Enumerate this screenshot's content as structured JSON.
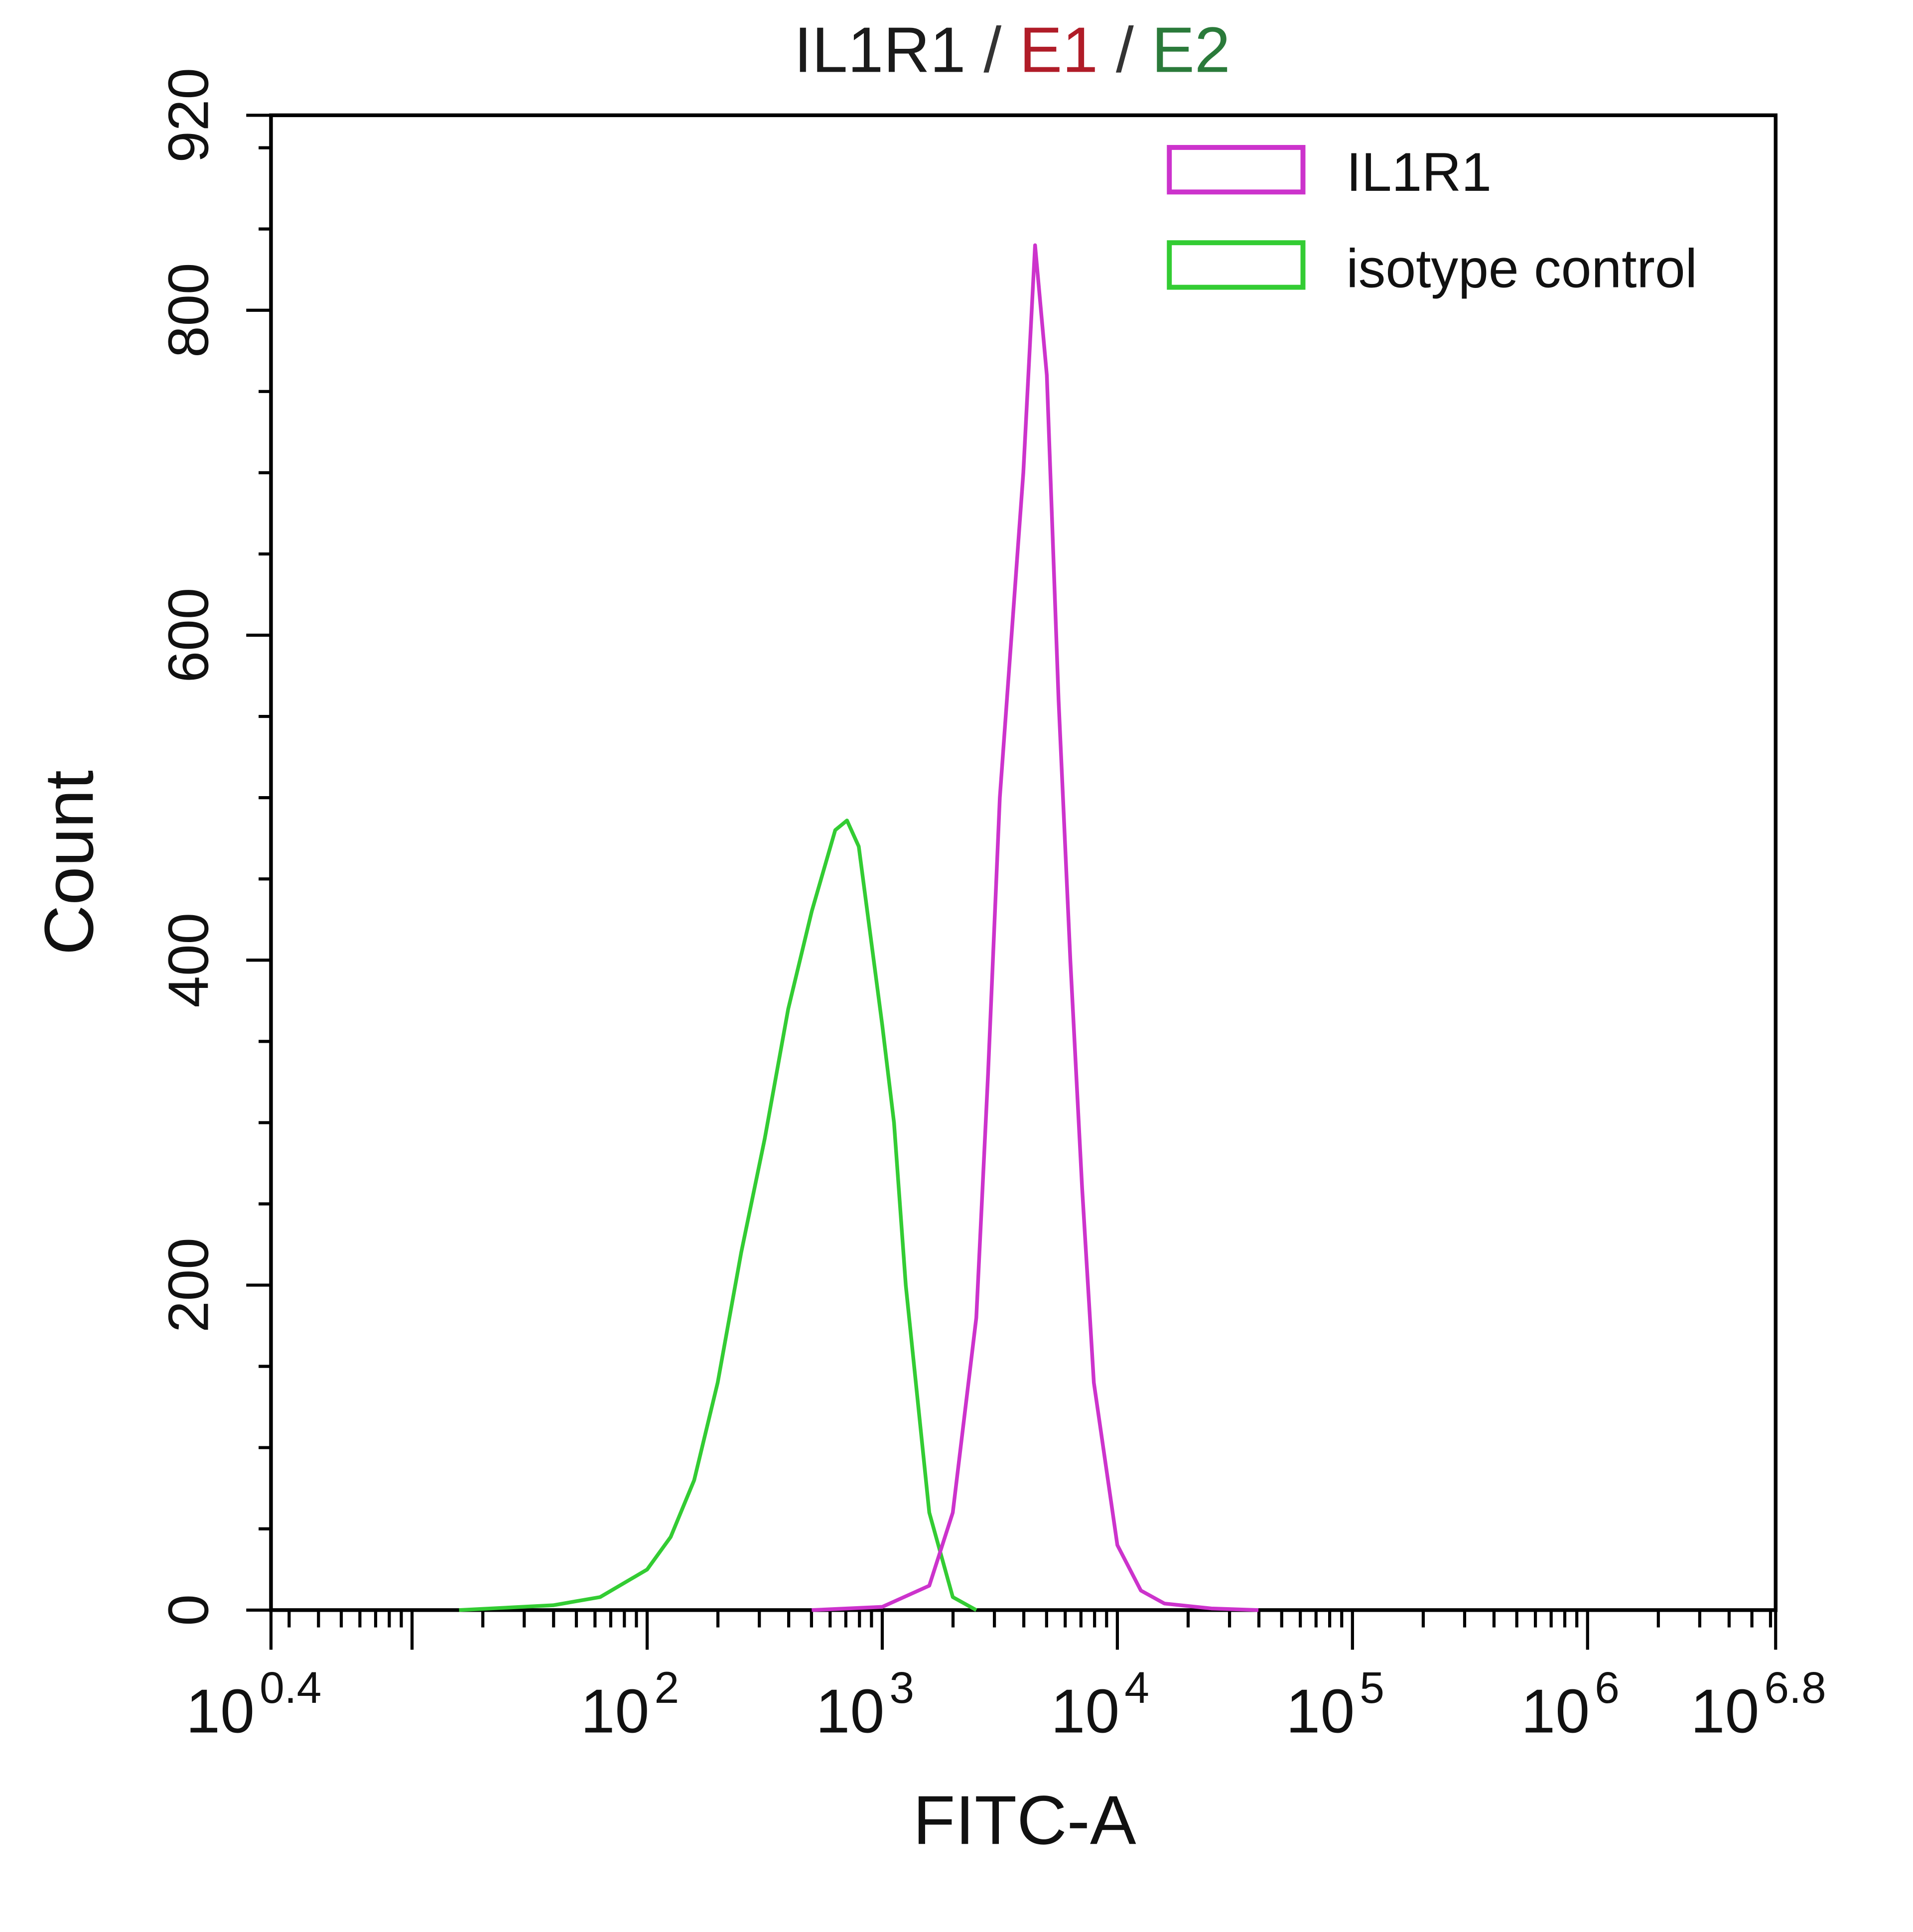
{
  "title": {
    "parts": [
      {
        "text": "IL1R1",
        "color": "#1a1a1a"
      },
      {
        "text": " / ",
        "color": "#333333"
      },
      {
        "text": "E1",
        "color": "#b01c28"
      },
      {
        "text": " / ",
        "color": "#333333"
      },
      {
        "text": "E2",
        "color": "#2a7a3a"
      }
    ]
  },
  "axes": {
    "xlabel": "FITC-A",
    "ylabel": "Count",
    "y_ticks": [
      "0",
      "200",
      "400",
      "600",
      "800",
      "920"
    ],
    "x_ticks": [
      {
        "base": "10",
        "exp": "0.4"
      },
      {
        "base": "10",
        "exp": "2"
      },
      {
        "base": "10",
        "exp": "3"
      },
      {
        "base": "10",
        "exp": "4"
      },
      {
        "base": "10",
        "exp": "5"
      },
      {
        "base": "10",
        "exp": "6"
      },
      {
        "base": "10",
        "exp": "6.8"
      }
    ]
  },
  "legend": {
    "items": [
      {
        "label": "IL1R1",
        "color": "#cc33cc"
      },
      {
        "label": "isotype control",
        "color": "#33cc33"
      }
    ]
  },
  "chart_data": {
    "type": "line",
    "title": "IL1R1 / E1 / E2",
    "xlabel": "FITC-A",
    "ylabel": "Count",
    "xscale": "log",
    "xlim": [
      2.51,
      6310000
    ],
    "xlim_log10": [
      0.4,
      6.8
    ],
    "ylim": [
      0,
      920
    ],
    "x_tick_labels": [
      "10^0.4",
      "10^2",
      "10^3",
      "10^4",
      "10^5",
      "10^6",
      "10^6.8"
    ],
    "y_tick_labels": [
      "0",
      "200",
      "400",
      "600",
      "800",
      "920"
    ],
    "grid": false,
    "legend_position": "upper right",
    "series": [
      {
        "name": "IL1R1",
        "color": "#cc33cc",
        "x_log10": [
          2.7,
          3.0,
          3.2,
          3.3,
          3.4,
          3.45,
          3.5,
          3.55,
          3.6,
          3.65,
          3.7,
          3.75,
          3.8,
          3.85,
          3.9,
          4.0,
          4.1,
          4.2,
          4.4,
          4.6
        ],
        "values": [
          0,
          2,
          15,
          60,
          180,
          330,
          500,
          600,
          700,
          840,
          760,
          560,
          400,
          260,
          140,
          40,
          12,
          4,
          1,
          0
        ],
        "peak": {
          "x": 4460,
          "count": 840
        }
      },
      {
        "name": "isotype control",
        "color": "#33cc33",
        "x_log10": [
          1.2,
          1.6,
          1.8,
          2.0,
          2.1,
          2.2,
          2.3,
          2.4,
          2.5,
          2.6,
          2.7,
          2.8,
          2.85,
          2.9,
          3.0,
          3.05,
          3.1,
          3.2,
          3.3,
          3.4
        ],
        "values": [
          0,
          3,
          8,
          25,
          45,
          80,
          140,
          220,
          290,
          370,
          430,
          480,
          486,
          470,
          360,
          300,
          200,
          60,
          8,
          0
        ],
        "peak": {
          "x": 716,
          "count": 486
        }
      }
    ]
  }
}
